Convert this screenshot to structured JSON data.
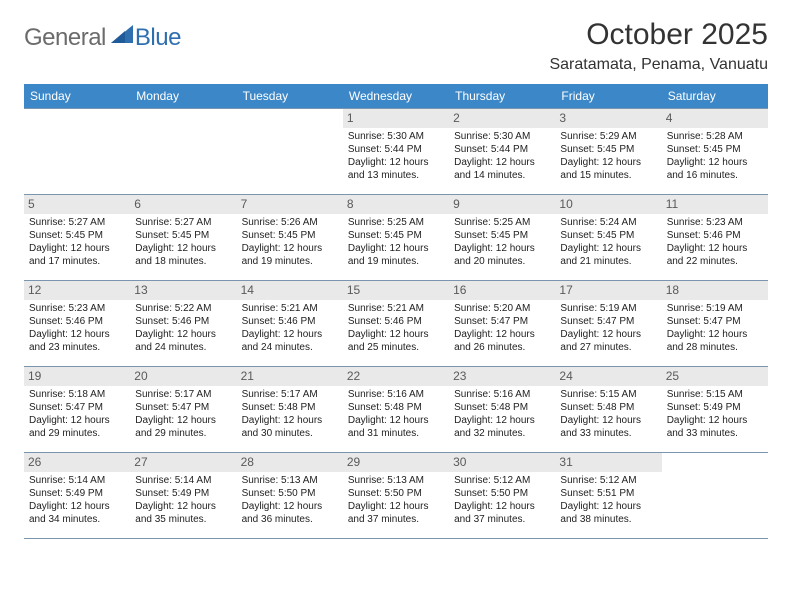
{
  "logo": {
    "general": "General",
    "blue": "Blue"
  },
  "title": "October 2025",
  "location": "Saratamata, Penama, Vanuatu",
  "colors": {
    "header_bg": "#3c87c7",
    "header_text": "#ffffff",
    "daynum_bg": "#e9e9e9",
    "daynum_text": "#5a5a5a",
    "cell_border": "#7a95ae",
    "body_text": "#222222",
    "title_text": "#333333",
    "logo_general": "#6b6b6b",
    "logo_blue": "#2f6fb0"
  },
  "day_headers": [
    "Sunday",
    "Monday",
    "Tuesday",
    "Wednesday",
    "Thursday",
    "Friday",
    "Saturday"
  ],
  "weeks": [
    [
      {
        "n": "",
        "sr": "",
        "ss": "",
        "dl": ""
      },
      {
        "n": "",
        "sr": "",
        "ss": "",
        "dl": ""
      },
      {
        "n": "",
        "sr": "",
        "ss": "",
        "dl": ""
      },
      {
        "n": "1",
        "sr": "Sunrise: 5:30 AM",
        "ss": "Sunset: 5:44 PM",
        "dl": "Daylight: 12 hours and 13 minutes."
      },
      {
        "n": "2",
        "sr": "Sunrise: 5:30 AM",
        "ss": "Sunset: 5:44 PM",
        "dl": "Daylight: 12 hours and 14 minutes."
      },
      {
        "n": "3",
        "sr": "Sunrise: 5:29 AM",
        "ss": "Sunset: 5:45 PM",
        "dl": "Daylight: 12 hours and 15 minutes."
      },
      {
        "n": "4",
        "sr": "Sunrise: 5:28 AM",
        "ss": "Sunset: 5:45 PM",
        "dl": "Daylight: 12 hours and 16 minutes."
      }
    ],
    [
      {
        "n": "5",
        "sr": "Sunrise: 5:27 AM",
        "ss": "Sunset: 5:45 PM",
        "dl": "Daylight: 12 hours and 17 minutes."
      },
      {
        "n": "6",
        "sr": "Sunrise: 5:27 AM",
        "ss": "Sunset: 5:45 PM",
        "dl": "Daylight: 12 hours and 18 minutes."
      },
      {
        "n": "7",
        "sr": "Sunrise: 5:26 AM",
        "ss": "Sunset: 5:45 PM",
        "dl": "Daylight: 12 hours and 19 minutes."
      },
      {
        "n": "8",
        "sr": "Sunrise: 5:25 AM",
        "ss": "Sunset: 5:45 PM",
        "dl": "Daylight: 12 hours and 19 minutes."
      },
      {
        "n": "9",
        "sr": "Sunrise: 5:25 AM",
        "ss": "Sunset: 5:45 PM",
        "dl": "Daylight: 12 hours and 20 minutes."
      },
      {
        "n": "10",
        "sr": "Sunrise: 5:24 AM",
        "ss": "Sunset: 5:45 PM",
        "dl": "Daylight: 12 hours and 21 minutes."
      },
      {
        "n": "11",
        "sr": "Sunrise: 5:23 AM",
        "ss": "Sunset: 5:46 PM",
        "dl": "Daylight: 12 hours and 22 minutes."
      }
    ],
    [
      {
        "n": "12",
        "sr": "Sunrise: 5:23 AM",
        "ss": "Sunset: 5:46 PM",
        "dl": "Daylight: 12 hours and 23 minutes."
      },
      {
        "n": "13",
        "sr": "Sunrise: 5:22 AM",
        "ss": "Sunset: 5:46 PM",
        "dl": "Daylight: 12 hours and 24 minutes."
      },
      {
        "n": "14",
        "sr": "Sunrise: 5:21 AM",
        "ss": "Sunset: 5:46 PM",
        "dl": "Daylight: 12 hours and 24 minutes."
      },
      {
        "n": "15",
        "sr": "Sunrise: 5:21 AM",
        "ss": "Sunset: 5:46 PM",
        "dl": "Daylight: 12 hours and 25 minutes."
      },
      {
        "n": "16",
        "sr": "Sunrise: 5:20 AM",
        "ss": "Sunset: 5:47 PM",
        "dl": "Daylight: 12 hours and 26 minutes."
      },
      {
        "n": "17",
        "sr": "Sunrise: 5:19 AM",
        "ss": "Sunset: 5:47 PM",
        "dl": "Daylight: 12 hours and 27 minutes."
      },
      {
        "n": "18",
        "sr": "Sunrise: 5:19 AM",
        "ss": "Sunset: 5:47 PM",
        "dl": "Daylight: 12 hours and 28 minutes."
      }
    ],
    [
      {
        "n": "19",
        "sr": "Sunrise: 5:18 AM",
        "ss": "Sunset: 5:47 PM",
        "dl": "Daylight: 12 hours and 29 minutes."
      },
      {
        "n": "20",
        "sr": "Sunrise: 5:17 AM",
        "ss": "Sunset: 5:47 PM",
        "dl": "Daylight: 12 hours and 29 minutes."
      },
      {
        "n": "21",
        "sr": "Sunrise: 5:17 AM",
        "ss": "Sunset: 5:48 PM",
        "dl": "Daylight: 12 hours and 30 minutes."
      },
      {
        "n": "22",
        "sr": "Sunrise: 5:16 AM",
        "ss": "Sunset: 5:48 PM",
        "dl": "Daylight: 12 hours and 31 minutes."
      },
      {
        "n": "23",
        "sr": "Sunrise: 5:16 AM",
        "ss": "Sunset: 5:48 PM",
        "dl": "Daylight: 12 hours and 32 minutes."
      },
      {
        "n": "24",
        "sr": "Sunrise: 5:15 AM",
        "ss": "Sunset: 5:48 PM",
        "dl": "Daylight: 12 hours and 33 minutes."
      },
      {
        "n": "25",
        "sr": "Sunrise: 5:15 AM",
        "ss": "Sunset: 5:49 PM",
        "dl": "Daylight: 12 hours and 33 minutes."
      }
    ],
    [
      {
        "n": "26",
        "sr": "Sunrise: 5:14 AM",
        "ss": "Sunset: 5:49 PM",
        "dl": "Daylight: 12 hours and 34 minutes."
      },
      {
        "n": "27",
        "sr": "Sunrise: 5:14 AM",
        "ss": "Sunset: 5:49 PM",
        "dl": "Daylight: 12 hours and 35 minutes."
      },
      {
        "n": "28",
        "sr": "Sunrise: 5:13 AM",
        "ss": "Sunset: 5:50 PM",
        "dl": "Daylight: 12 hours and 36 minutes."
      },
      {
        "n": "29",
        "sr": "Sunrise: 5:13 AM",
        "ss": "Sunset: 5:50 PM",
        "dl": "Daylight: 12 hours and 37 minutes."
      },
      {
        "n": "30",
        "sr": "Sunrise: 5:12 AM",
        "ss": "Sunset: 5:50 PM",
        "dl": "Daylight: 12 hours and 37 minutes."
      },
      {
        "n": "31",
        "sr": "Sunrise: 5:12 AM",
        "ss": "Sunset: 5:51 PM",
        "dl": "Daylight: 12 hours and 38 minutes."
      },
      {
        "n": "",
        "sr": "",
        "ss": "",
        "dl": ""
      }
    ]
  ]
}
